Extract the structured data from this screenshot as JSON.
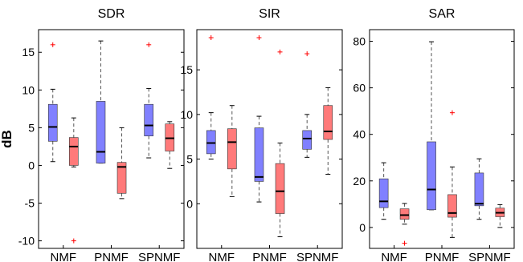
{
  "colors": {
    "series_a": "#8080ff",
    "series_b": "#ff7a7a",
    "outlier": "#ff0000",
    "median": "#000000",
    "whisker": "#555555"
  },
  "chart_data": [
    {
      "type": "boxplot",
      "title": "SDR",
      "ylabel": "dB",
      "ylim": [
        -11,
        18
      ],
      "yticks": [
        -10,
        -5,
        0,
        5,
        10,
        15
      ],
      "categories": [
        "NMF",
        "PNMF",
        "SPNMF"
      ],
      "boxes": [
        {
          "category": "NMF",
          "color": "series_a",
          "whisker_low": 0.5,
          "q1": 3.2,
          "median": 5.1,
          "q3": 8.1,
          "whisker_high": 10.1,
          "outliers": [
            16.0
          ]
        },
        {
          "category": "NMF",
          "color": "series_b",
          "whisker_low": -0.2,
          "q1": 0.0,
          "median": 2.5,
          "q3": 3.7,
          "whisker_high": 6.3,
          "outliers": [
            -10.0
          ]
        },
        {
          "category": "PNMF",
          "color": "series_a",
          "whisker_low": 0.3,
          "q1": 0.3,
          "median": 1.8,
          "q3": 8.5,
          "whisker_high": 16.5,
          "outliers": []
        },
        {
          "category": "PNMF",
          "color": "series_b",
          "whisker_low": -4.4,
          "q1": -3.7,
          "median": -0.2,
          "q3": 0.4,
          "whisker_high": 5.0,
          "outliers": []
        },
        {
          "category": "SPNMF",
          "color": "series_a",
          "whisker_low": 1.0,
          "q1": 3.9,
          "median": 5.3,
          "q3": 8.1,
          "whisker_high": 10.2,
          "outliers": [
            16.0
          ]
        },
        {
          "category": "SPNMF",
          "color": "series_b",
          "whisker_low": -0.4,
          "q1": 1.9,
          "median": 3.6,
          "q3": 5.5,
          "whisker_high": 5.8,
          "outliers": []
        }
      ]
    },
    {
      "type": "boxplot",
      "title": "SIR",
      "ylabel": "",
      "ylim": [
        -5,
        19.5
      ],
      "yticks": [
        0,
        5,
        10,
        15
      ],
      "categories": [
        "NMF",
        "PNMF",
        "SPNMF"
      ],
      "boxes": [
        {
          "category": "NMF",
          "color": "series_a",
          "whisker_low": 5.0,
          "q1": 5.6,
          "median": 6.8,
          "q3": 8.2,
          "whisker_high": 10.2,
          "outliers": [
            18.6
          ]
        },
        {
          "category": "NMF",
          "color": "series_b",
          "whisker_low": 0.8,
          "q1": 3.9,
          "median": 6.9,
          "q3": 8.4,
          "whisker_high": 11.0,
          "outliers": []
        },
        {
          "category": "PNMF",
          "color": "series_a",
          "whisker_low": 0.2,
          "q1": 2.5,
          "median": 3.0,
          "q3": 8.5,
          "whisker_high": 9.8,
          "outliers": [
            18.6
          ]
        },
        {
          "category": "PNMF",
          "color": "series_b",
          "whisker_low": -3.7,
          "q1": -1.1,
          "median": 1.4,
          "q3": 4.5,
          "whisker_high": 6.8,
          "outliers": [
            17.0
          ]
        },
        {
          "category": "SPNMF",
          "color": "series_a",
          "whisker_low": 5.2,
          "q1": 6.1,
          "median": 7.3,
          "q3": 8.2,
          "whisker_high": 10.0,
          "outliers": [
            16.8
          ]
        },
        {
          "category": "SPNMF",
          "color": "series_b",
          "whisker_low": 3.3,
          "q1": 7.2,
          "median": 8.1,
          "q3": 11.0,
          "whisker_high": 13.0,
          "outliers": []
        }
      ]
    },
    {
      "type": "boxplot",
      "title": "SAR",
      "ylabel": "",
      "ylim": [
        -9,
        85
      ],
      "yticks": [
        0,
        20,
        40,
        60,
        80
      ],
      "categories": [
        "NMF",
        "PNMF",
        "SPNMF"
      ],
      "boxes": [
        {
          "category": "NMF",
          "color": "series_a",
          "whisker_low": 3.5,
          "q1": 8.5,
          "median": 11.2,
          "q3": 20.9,
          "whisker_high": 27.8,
          "outliers": []
        },
        {
          "category": "NMF",
          "color": "series_b",
          "whisker_low": 1.4,
          "q1": 3.5,
          "median": 5.3,
          "q3": 8.0,
          "whisker_high": 10.3,
          "outliers": [
            -6.8
          ]
        },
        {
          "category": "PNMF",
          "color": "series_a",
          "whisker_low": 7.6,
          "q1": 7.6,
          "median": 16.3,
          "q3": 36.8,
          "whisker_high": 79.8,
          "outliers": []
        },
        {
          "category": "PNMF",
          "color": "series_b",
          "whisker_low": -4.3,
          "q1": 4.4,
          "median": 6.2,
          "q3": 14.1,
          "whisker_high": 26.0,
          "outliers": [
            49.3
          ]
        },
        {
          "category": "SPNMF",
          "color": "series_a",
          "whisker_low": 3.5,
          "q1": 9.3,
          "median": 10.2,
          "q3": 23.4,
          "whisker_high": 29.5,
          "outliers": []
        },
        {
          "category": "SPNMF",
          "color": "series_b",
          "whisker_low": 0.0,
          "q1": 4.6,
          "median": 6.3,
          "q3": 8.3,
          "whisker_high": 9.8,
          "outliers": []
        }
      ]
    }
  ]
}
